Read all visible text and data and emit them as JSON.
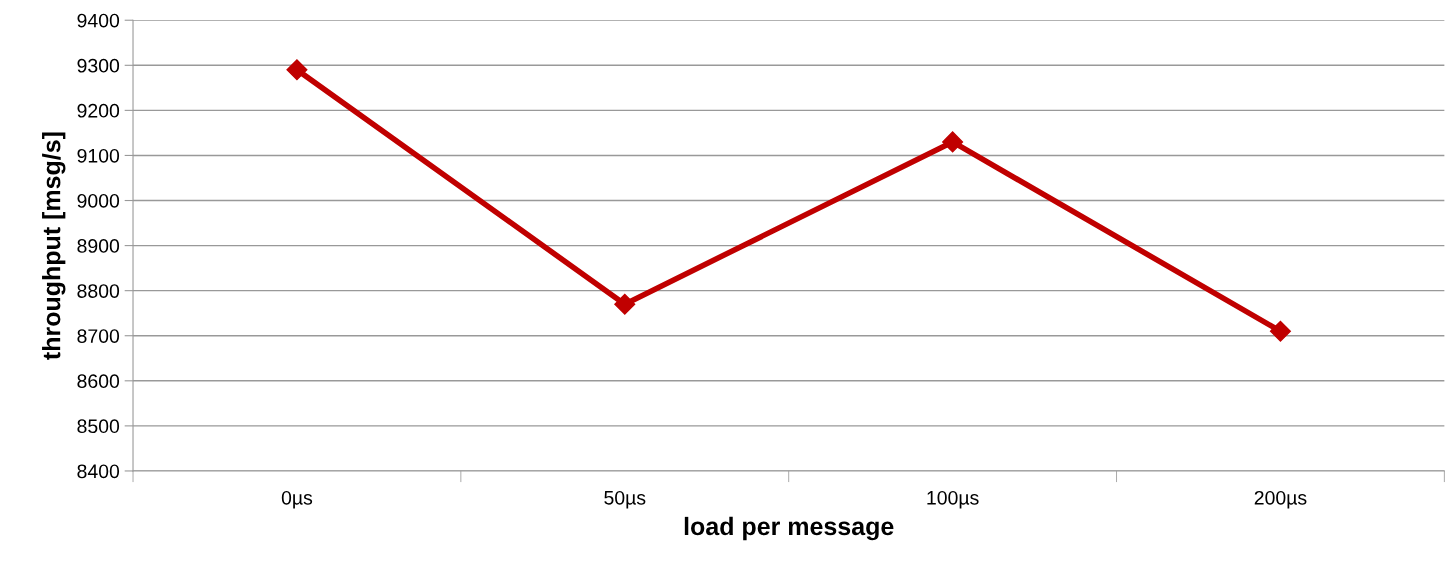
{
  "chart_data": {
    "type": "line",
    "xlabel": "load per message",
    "ylabel": "throughput [msg/s]",
    "categories": [
      "0µs",
      "50µs",
      "100µs",
      "200µs"
    ],
    "series": [
      {
        "color": "#c00000",
        "values": [
          9290,
          8770,
          9130,
          8710
        ]
      }
    ],
    "ylim": [
      8400,
      9400
    ],
    "yticks": [
      8400,
      8500,
      8600,
      8700,
      8800,
      8900,
      9000,
      9100,
      9200,
      9300,
      9400
    ],
    "grid": "y",
    "legend": false,
    "marker": "diamond",
    "line_style": "solid"
  }
}
